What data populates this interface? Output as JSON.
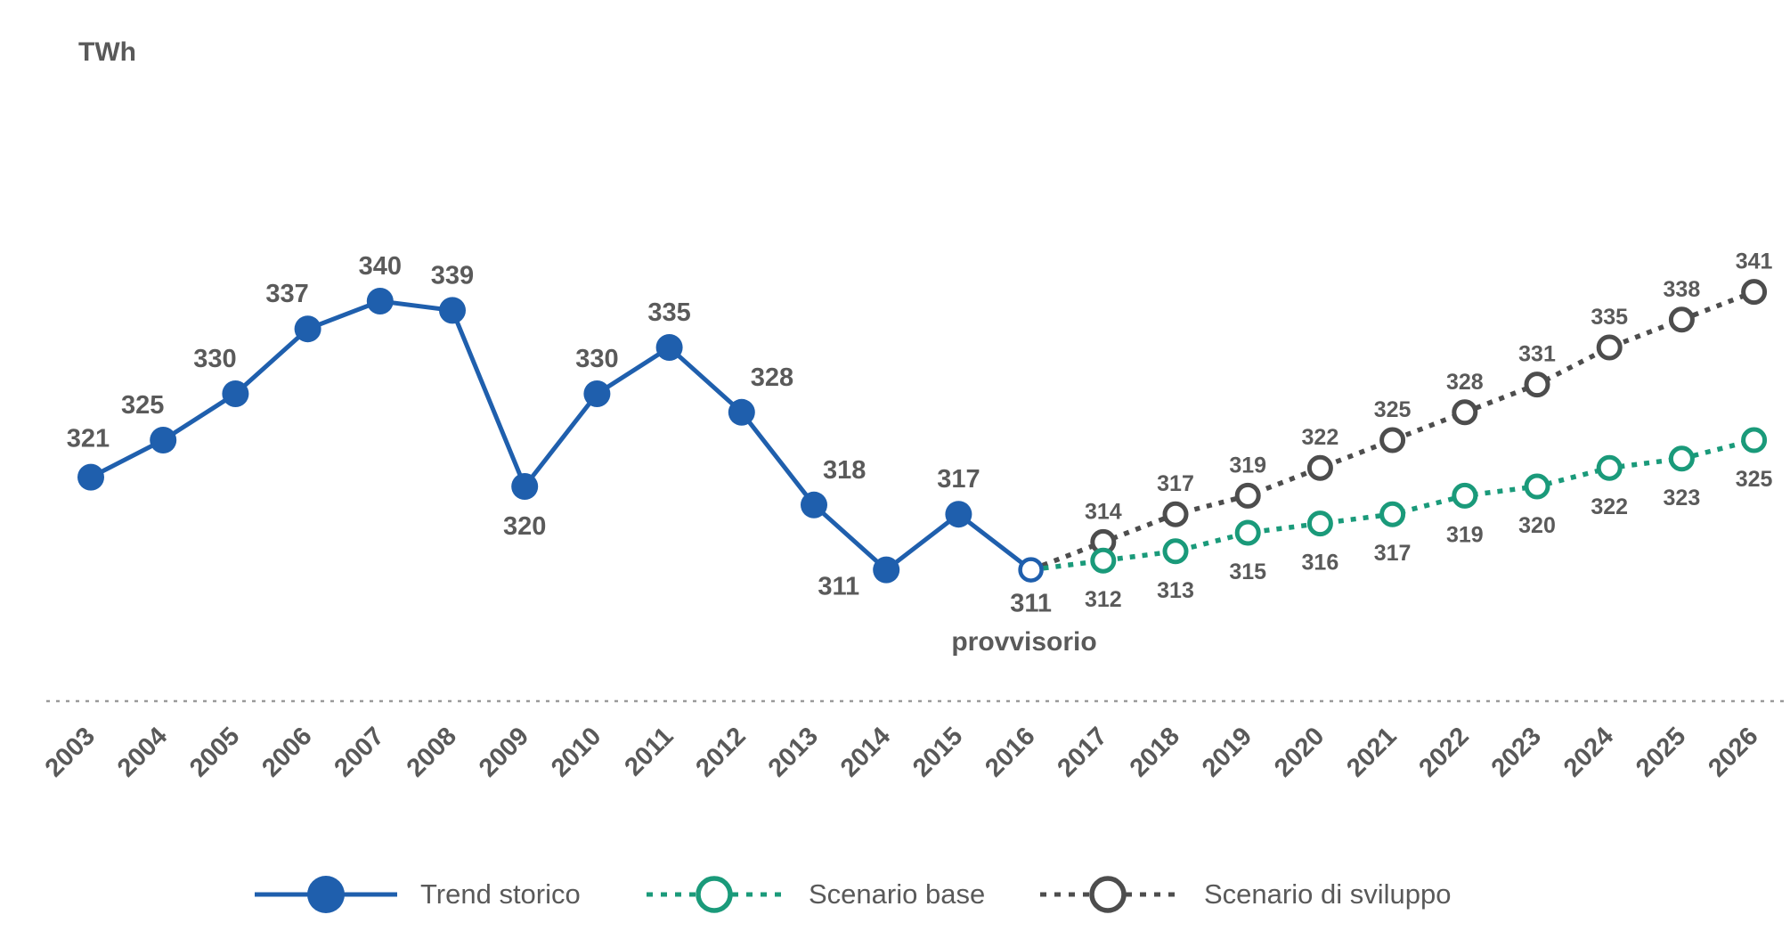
{
  "chart_data": {
    "type": "line",
    "unit_label": "TWh",
    "x": [
      "2003",
      "2004",
      "2005",
      "2006",
      "2007",
      "2008",
      "2009",
      "2010",
      "2011",
      "2012",
      "2013",
      "2014",
      "2015",
      "2016",
      "2017",
      "2018",
      "2019",
      "2020",
      "2021",
      "2022",
      "2023",
      "2024",
      "2025",
      "2026"
    ],
    "series": [
      {
        "name": "Trend storico",
        "color": "#1f5fad",
        "style": "solid",
        "marker": "filled-circle",
        "x": [
          "2003",
          "2004",
          "2005",
          "2006",
          "2007",
          "2008",
          "2009",
          "2010",
          "2011",
          "2012",
          "2013",
          "2014",
          "2015",
          "2016"
        ],
        "values": [
          321,
          325,
          330,
          337,
          340,
          339,
          320,
          330,
          335,
          328,
          318,
          311,
          317,
          311
        ]
      },
      {
        "name": "Scenario base",
        "color": "#1a9a7a",
        "style": "dotted",
        "marker": "hollow-circle",
        "x": [
          "2016",
          "2017",
          "2018",
          "2019",
          "2020",
          "2021",
          "2022",
          "2023",
          "2024",
          "2025",
          "2026"
        ],
        "values": [
          311,
          312,
          313,
          315,
          316,
          317,
          319,
          320,
          322,
          323,
          325
        ]
      },
      {
        "name": "Scenario di sviluppo",
        "color": "#4d4d4d",
        "style": "dotted",
        "marker": "hollow-circle",
        "x": [
          "2016",
          "2017",
          "2018",
          "2019",
          "2020",
          "2021",
          "2022",
          "2023",
          "2024",
          "2025",
          "2026"
        ],
        "values": [
          311,
          314,
          317,
          319,
          322,
          325,
          328,
          331,
          335,
          338,
          341
        ]
      }
    ],
    "annotation": "provvisorio",
    "legend_position": "bottom",
    "grid": false
  }
}
